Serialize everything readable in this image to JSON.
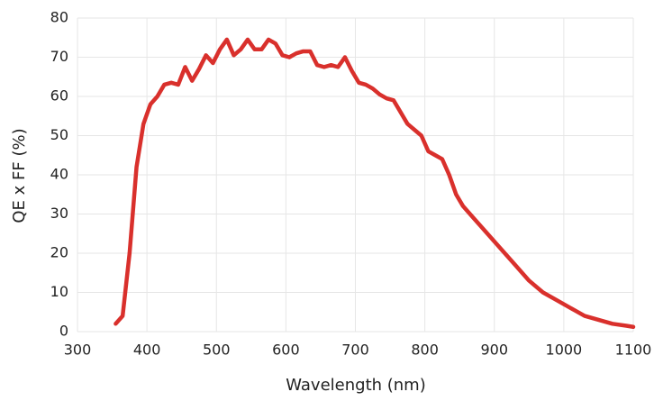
{
  "chart_data": {
    "type": "line",
    "x_label": "Wavelength (nm)",
    "y_label": "QE x FF (%)",
    "x": [
      355,
      365,
      375,
      385,
      395,
      405,
      415,
      425,
      435,
      445,
      455,
      465,
      475,
      485,
      495,
      505,
      515,
      525,
      535,
      545,
      555,
      565,
      575,
      585,
      595,
      605,
      615,
      625,
      635,
      645,
      655,
      665,
      675,
      685,
      695,
      705,
      715,
      725,
      735,
      745,
      755,
      765,
      775,
      785,
      795,
      805,
      815,
      825,
      835,
      845,
      855,
      870,
      890,
      910,
      930,
      950,
      970,
      990,
      1010,
      1030,
      1050,
      1070,
      1090,
      1100
    ],
    "values": [
      2,
      4,
      20,
      42,
      53,
      58,
      60,
      63,
      63.5,
      63,
      67.5,
      64,
      67,
      70.5,
      68.5,
      72,
      74.5,
      70.5,
      72,
      74.5,
      72,
      72,
      74.5,
      73.5,
      70.5,
      70,
      71,
      71.5,
      71.5,
      68,
      67.5,
      68,
      67.5,
      70,
      66.5,
      63.5,
      63,
      62,
      60.5,
      59.5,
      59,
      56,
      53,
      51.5,
      50,
      46,
      45,
      44,
      40,
      35,
      32,
      29,
      25,
      21,
      17,
      13,
      10,
      8,
      6,
      4,
      3,
      2,
      1.5,
      1.2
    ],
    "color": "#d9302c",
    "xlim": [
      300,
      1100
    ],
    "xticks": [
      300,
      400,
      500,
      600,
      700,
      800,
      900,
      1000,
      1100
    ],
    "ylim": [
      0,
      80
    ],
    "yticks": [
      0,
      10,
      20,
      30,
      40,
      50,
      60,
      70,
      80
    ],
    "grid": true
  }
}
